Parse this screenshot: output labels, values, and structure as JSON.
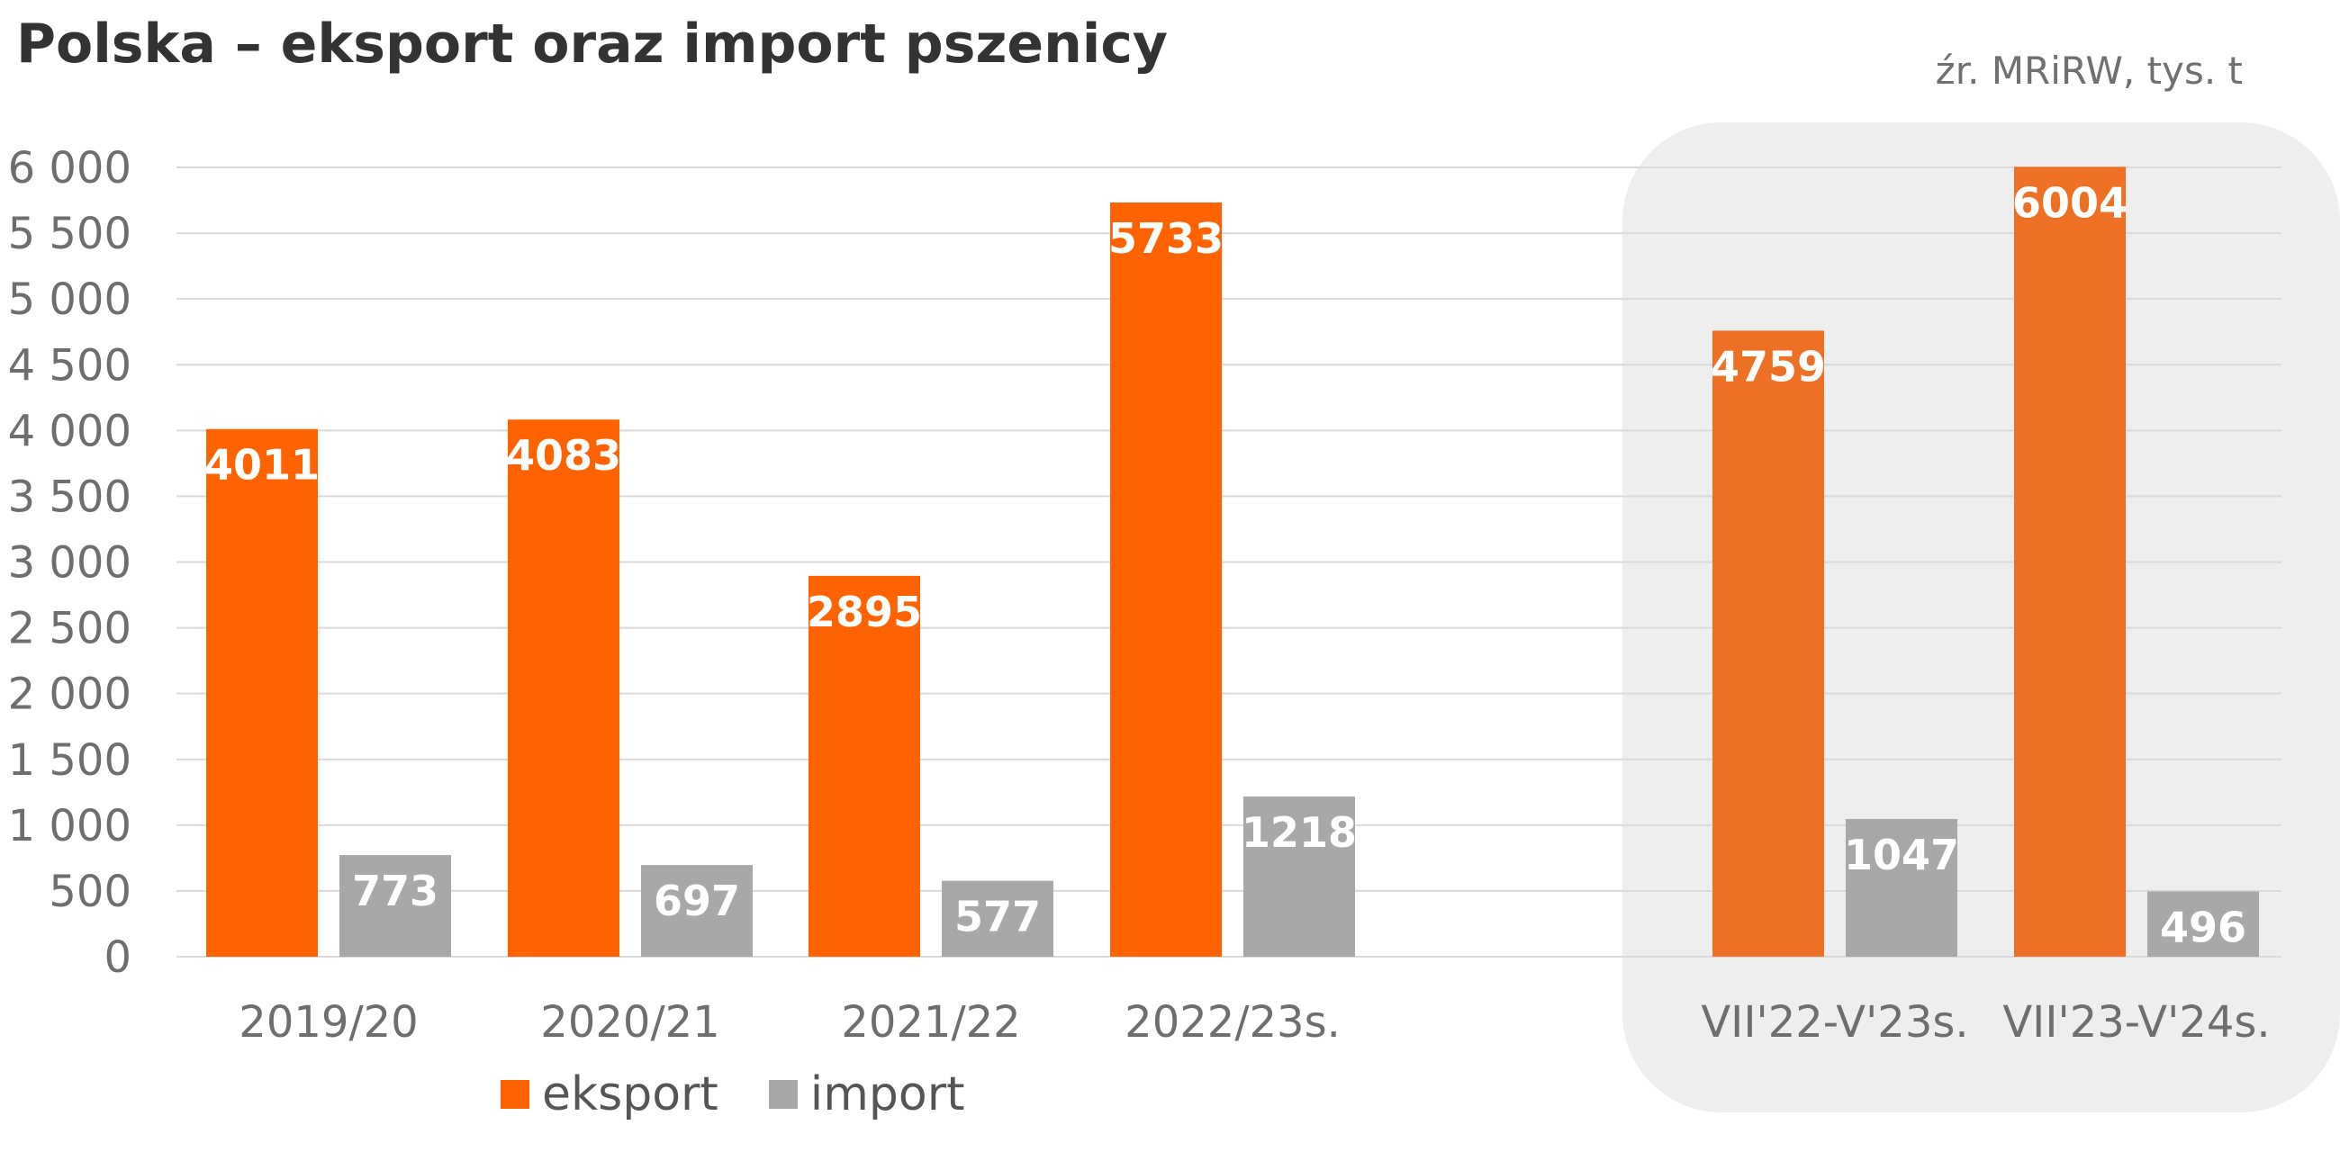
{
  "title": "Polska – eksport oraz import pszenicy",
  "source": "źr. MRiRW, tys. t",
  "colors": {
    "eksport": "#ff6200",
    "eksport_highlight": "#ee7024",
    "import": "#a8a8a8",
    "highlight_bg": "#eeeeee",
    "grid": "#d9d9d9"
  },
  "chart_data": {
    "type": "bar",
    "title": "Polska – eksport oraz import pszenicy",
    "unit": "tys. t",
    "categories": [
      "2019/20",
      "2020/21",
      "2021/22",
      "2022/23s.",
      "VII'22-V'23s.",
      "VII'23-V'24s."
    ],
    "highlighted_categories": [
      "VII'22-V'23s.",
      "VII'23-V'24s."
    ],
    "series": [
      {
        "name": "eksport",
        "values": [
          4011,
          4083,
          2895,
          5733,
          4759,
          6004
        ]
      },
      {
        "name": "import",
        "values": [
          773,
          697,
          577,
          1218,
          1047,
          496
        ]
      }
    ],
    "data_labels": {
      "eksport": [
        "4011",
        "4083",
        "2895",
        "5733",
        "4759",
        "6004"
      ],
      "import": [
        "773",
        "697",
        "577",
        "1218",
        "1047",
        "496"
      ]
    },
    "ylim": [
      0,
      6000
    ],
    "yticks": [
      0,
      500,
      1000,
      1500,
      2000,
      2500,
      3000,
      3500,
      4000,
      4500,
      5000,
      5500,
      6000
    ],
    "ytick_labels": [
      "0",
      "500",
      "1 000",
      "1 500",
      "2 000",
      "2 500",
      "3 000",
      "3 500",
      "4 000",
      "4 500",
      "5 000",
      "5 500",
      "6 000"
    ],
    "grid": true,
    "legend_position": "bottom"
  }
}
